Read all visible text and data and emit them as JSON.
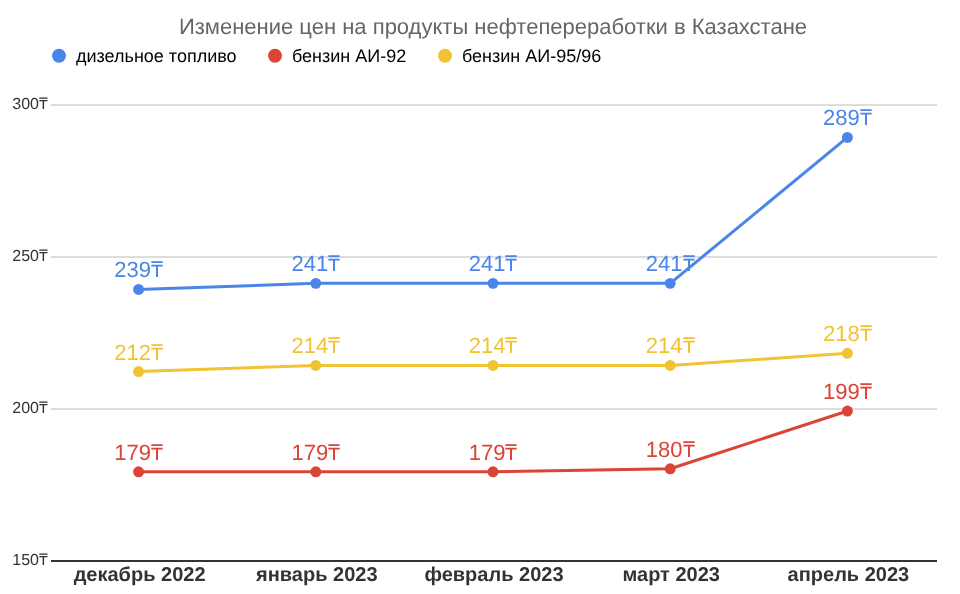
{
  "chart_data": {
    "type": "line",
    "title": "Изменение цен на продукты нефтепереработки в Казахстане",
    "categories": [
      "декабрь 2022",
      "январь 2023",
      "февраль 2023",
      "март 2023",
      "апрель 2023"
    ],
    "series": [
      {
        "name": "дизельное топливо",
        "color": "#4a86e8",
        "values": [
          239,
          241,
          241,
          241,
          289
        ],
        "value_labels": [
          "239₸",
          "241₸",
          "241₸",
          "241₸",
          "289₸"
        ]
      },
      {
        "name": "бензин АИ-92",
        "color": "#db4437",
        "values": [
          179,
          179,
          179,
          180,
          199
        ],
        "value_labels": [
          "179₸",
          "179₸",
          "179₸",
          "180₸",
          "199₸"
        ]
      },
      {
        "name": "бензин АИ-95/96",
        "color": "#f1c232",
        "values": [
          212,
          214,
          214,
          214,
          218
        ],
        "value_labels": [
          "212₸",
          "214₸",
          "214₸",
          "214₸",
          "218₸"
        ]
      }
    ],
    "ylim": [
      150,
      300
    ],
    "yticks": [
      {
        "value": 150,
        "label": "150₸"
      },
      {
        "value": 200,
        "label": "200₸"
      },
      {
        "value": 250,
        "label": "250₸"
      },
      {
        "value": 300,
        "label": "300₸"
      }
    ],
    "grid": "y",
    "legend": "top",
    "marker": "circle",
    "line_style": "solid"
  }
}
